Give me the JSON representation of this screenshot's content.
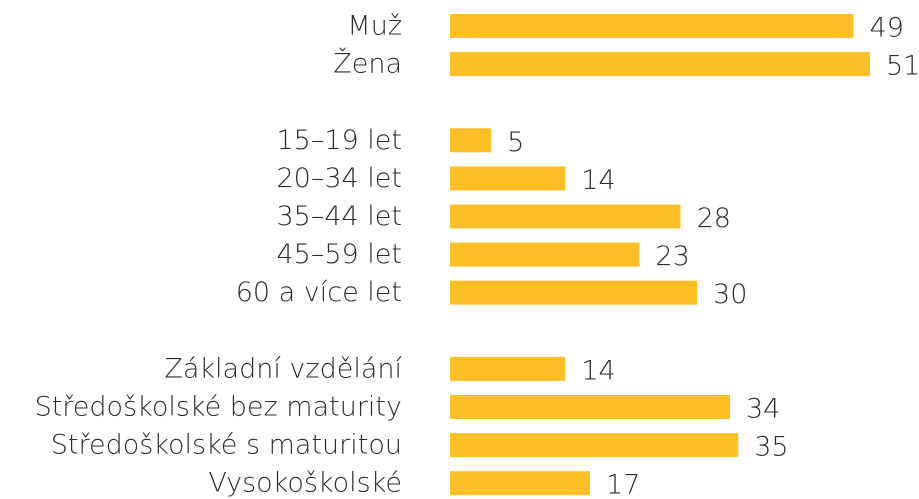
{
  "chart_data": [
    {
      "type": "bar",
      "color": "#fdbf28",
      "categories": [
        "Muž",
        "Žena"
      ],
      "values": [
        49,
        51
      ]
    },
    {
      "type": "bar",
      "color": "#fdbf28",
      "categories": [
        "15–19 let",
        "20–34 let",
        "35–44 let",
        "45–59 let",
        "60 a více let"
      ],
      "values": [
        5,
        14,
        28,
        23,
        30
      ]
    },
    {
      "type": "bar",
      "color": "#fdbf28",
      "categories": [
        "Základní vzdělání",
        "Středoškolské bez maturity",
        "Středoškolské s maturitou",
        "Vysokoškolské"
      ],
      "values": [
        14,
        34,
        35,
        17
      ]
    }
  ]
}
